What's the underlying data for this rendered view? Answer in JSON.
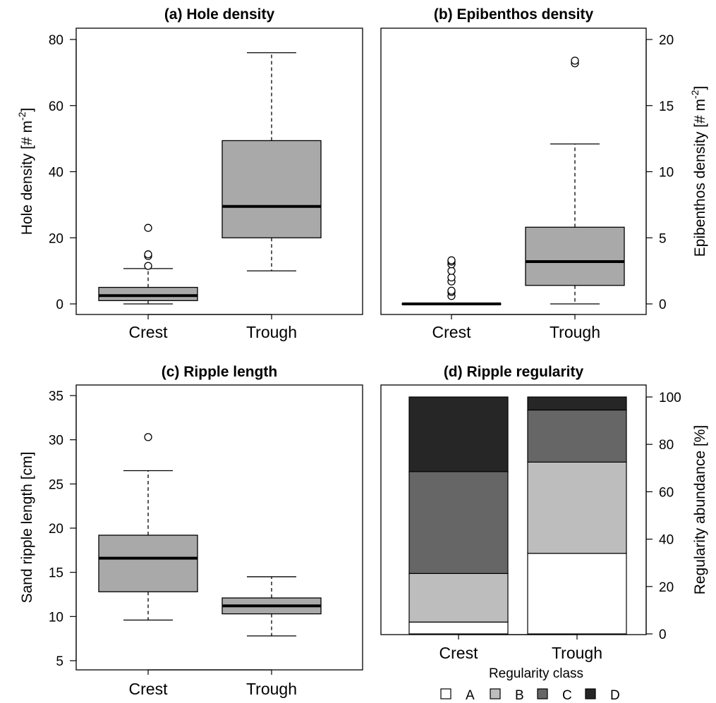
{
  "chart_data": [
    {
      "id": "a",
      "type": "box",
      "title": "(a) Hole density",
      "ylabel": "Hole density [# m",
      "ylabel_sup": "-2",
      "ylabel_tail": "]",
      "axis_side": "left",
      "ylim": [
        0,
        80
      ],
      "yticks": [
        0,
        20,
        40,
        60,
        80
      ],
      "categories": [
        "Crest",
        "Trough"
      ],
      "boxes": [
        {
          "category": "Crest",
          "min": 0,
          "q1": 1,
          "median": 2.5,
          "q3": 5,
          "max": 10.7,
          "outliers": [
            11.5,
            14.5,
            15,
            23
          ]
        },
        {
          "category": "Trough",
          "min": 10,
          "q1": 20,
          "median": 29.5,
          "q3": 49.4,
          "max": 76,
          "outliers": []
        }
      ]
    },
    {
      "id": "b",
      "type": "box",
      "title": "(b) Epibenthos density",
      "ylabel": "Epibenthos density [# m",
      "ylabel_sup": "-2",
      "ylabel_tail": "]",
      "axis_side": "right",
      "ylim": [
        0,
        20
      ],
      "yticks": [
        0,
        5,
        10,
        15,
        20
      ],
      "categories": [
        "Crest",
        "Trough"
      ],
      "boxes": [
        {
          "category": "Crest",
          "min": 0,
          "q1": 0,
          "median": 0,
          "q3": 0,
          "max": 0,
          "outliers": [
            0.6,
            0.9,
            1.0,
            1.7,
            2.0,
            2.5,
            3.0,
            3.2,
            3.3
          ]
        },
        {
          "category": "Trough",
          "min": 0,
          "q1": 1.4,
          "median": 3.2,
          "q3": 5.8,
          "max": 12.1,
          "outliers": [
            18.2,
            18.4
          ]
        }
      ]
    },
    {
      "id": "c",
      "type": "box",
      "title": "(c) Ripple length",
      "ylabel": "Sand ripple length [cm]",
      "ylabel_sup": "",
      "ylabel_tail": "",
      "axis_side": "left",
      "ylim": [
        5,
        35
      ],
      "yticks": [
        5,
        10,
        15,
        20,
        25,
        30,
        35
      ],
      "categories": [
        "Crest",
        "Trough"
      ],
      "boxes": [
        {
          "category": "Crest",
          "min": 9.6,
          "q1": 12.8,
          "median": 16.6,
          "q3": 19.2,
          "max": 26.5,
          "outliers": [
            30.3
          ]
        },
        {
          "category": "Trough",
          "min": 7.8,
          "q1": 10.3,
          "median": 11.2,
          "q3": 12.1,
          "max": 14.5,
          "outliers": []
        }
      ]
    },
    {
      "id": "d",
      "type": "bar",
      "stacked": true,
      "title": "(d) Ripple regularity",
      "ylabel": "Regularity abundance [%]",
      "axis_side": "right",
      "ylim": [
        0,
        100
      ],
      "yticks": [
        0,
        20,
        40,
        60,
        80,
        100
      ],
      "categories": [
        "Crest",
        "Trough"
      ],
      "series": [
        {
          "name": "A",
          "color": "#ffffff",
          "values": [
            5,
            34
          ]
        },
        {
          "name": "B",
          "color": "#bdbdbd",
          "values": [
            20.5,
            38.5
          ]
        },
        {
          "name": "C",
          "color": "#666666",
          "values": [
            43,
            22
          ]
        },
        {
          "name": "D",
          "color": "#262626",
          "values": [
            31.5,
            5.5
          ]
        }
      ],
      "legend_title": "Regularity class",
      "legend_placement": "bottom"
    }
  ]
}
